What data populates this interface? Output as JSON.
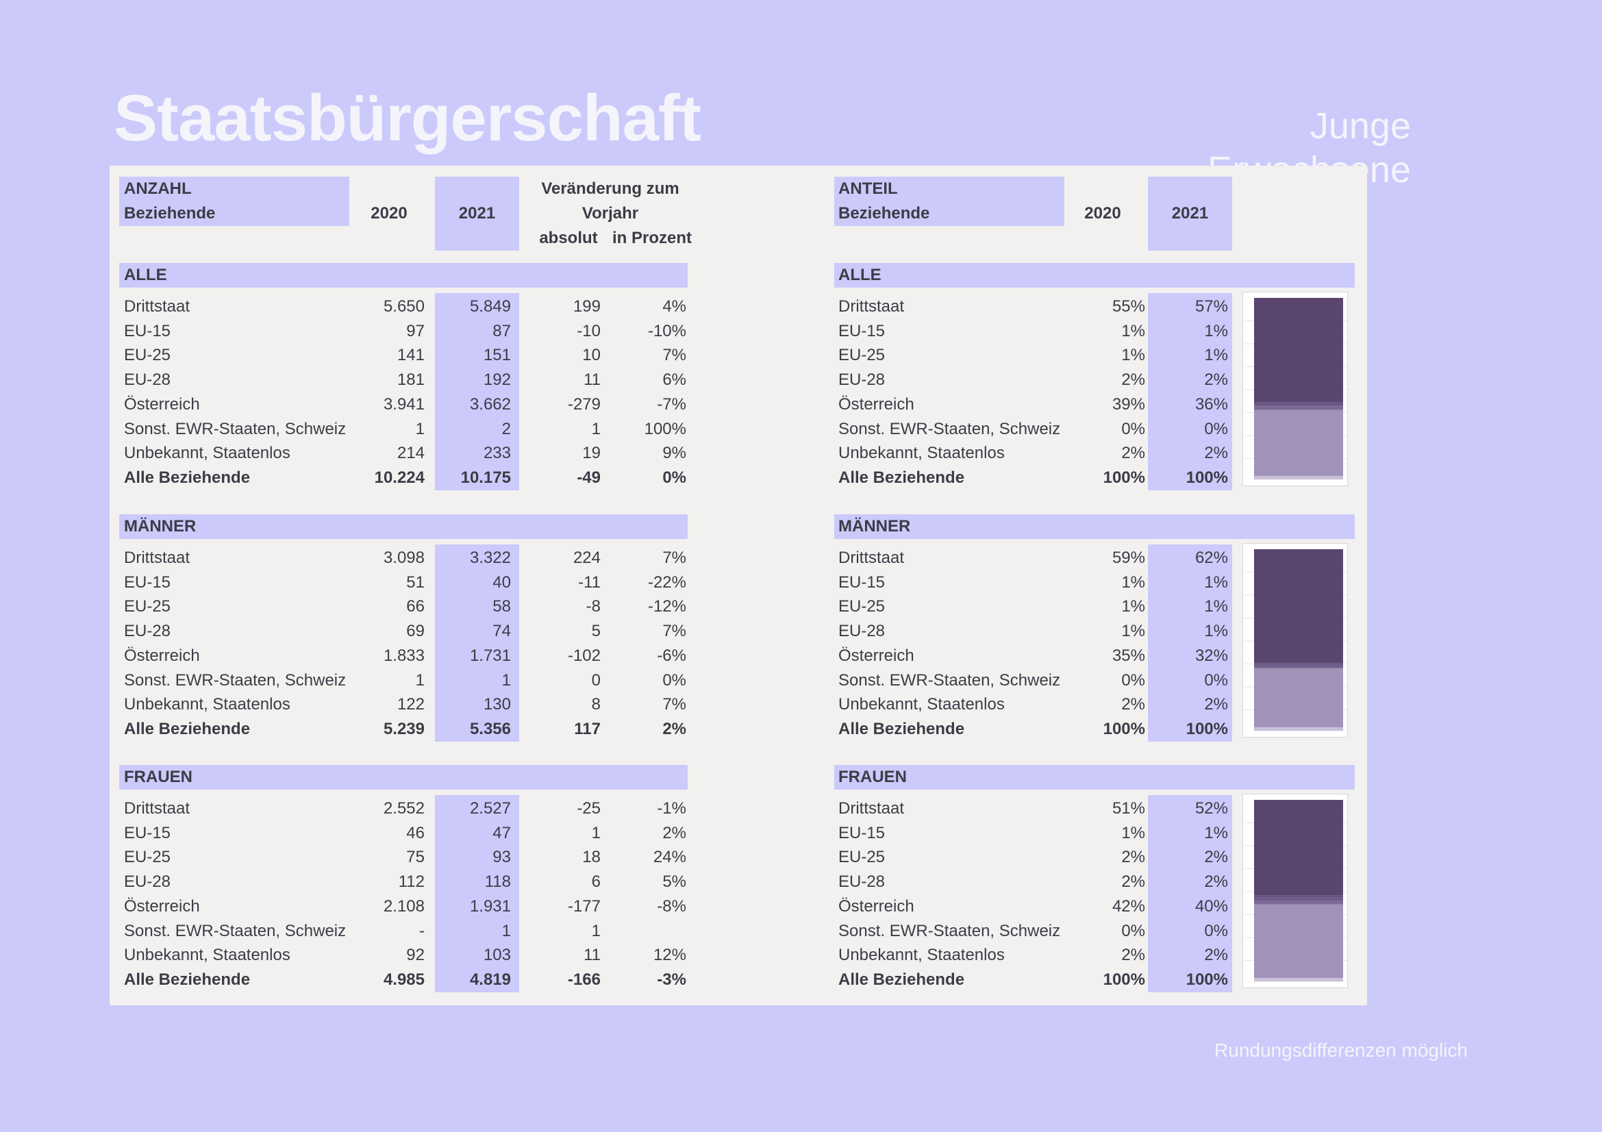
{
  "title": "Staatsbürgerschaft",
  "subtitle": "Junge Erwachsene",
  "footnote": "Rundungsdifferenzen möglich",
  "left_header": {
    "line1": "ANZAHL",
    "line2": "Beziehende",
    "year1": "2020",
    "year2": "2021",
    "change_line1": "Veränderung zum",
    "change_line2": "Vorjahr",
    "abs": "absolut",
    "pct": "in Prozent"
  },
  "right_header": {
    "line1": "ANTEIL",
    "line2": "Beziehende",
    "year1": "2020",
    "year2": "2021"
  },
  "groups": [
    {
      "name": "ALLE",
      "rows": [
        {
          "label": "Drittstaat",
          "v2020": "5.650",
          "v2021": "5.849",
          "abs": "199",
          "pct": "4%",
          "s2020": "55%",
          "s2021": "57%"
        },
        {
          "label": "EU-15",
          "v2020": "97",
          "v2021": "87",
          "abs": "-10",
          "pct": "-10%",
          "s2020": "1%",
          "s2021": "1%"
        },
        {
          "label": "EU-25",
          "v2020": "141",
          "v2021": "151",
          "abs": "10",
          "pct": "7%",
          "s2020": "1%",
          "s2021": "1%"
        },
        {
          "label": "EU-28",
          "v2020": "181",
          "v2021": "192",
          "abs": "11",
          "pct": "6%",
          "s2020": "2%",
          "s2021": "2%"
        },
        {
          "label": "Österreich",
          "v2020": "3.941",
          "v2021": "3.662",
          "abs": "-279",
          "pct": "-7%",
          "s2020": "39%",
          "s2021": "36%"
        },
        {
          "label": "Sonst. EWR-Staaten, Schweiz",
          "v2020": "1",
          "v2021": "2",
          "abs": "1",
          "pct": "100%",
          "s2020": "0%",
          "s2021": "0%"
        },
        {
          "label": "Unbekannt, Staatenlos",
          "v2020": "214",
          "v2021": "233",
          "abs": "19",
          "pct": "9%",
          "s2020": "2%",
          "s2021": "2%"
        },
        {
          "label": "Alle Beziehende",
          "v2020": "10.224",
          "v2021": "10.175",
          "abs": "-49",
          "pct": "0%",
          "s2020": "100%",
          "s2021": "100%",
          "bold": true
        }
      ]
    },
    {
      "name": "MÄNNER",
      "rows": [
        {
          "label": "Drittstaat",
          "v2020": "3.098",
          "v2021": "3.322",
          "abs": "224",
          "pct": "7%",
          "s2020": "59%",
          "s2021": "62%"
        },
        {
          "label": "EU-15",
          "v2020": "51",
          "v2021": "40",
          "abs": "-11",
          "pct": "-22%",
          "s2020": "1%",
          "s2021": "1%"
        },
        {
          "label": "EU-25",
          "v2020": "66",
          "v2021": "58",
          "abs": "-8",
          "pct": "-12%",
          "s2020": "1%",
          "s2021": "1%"
        },
        {
          "label": "EU-28",
          "v2020": "69",
          "v2021": "74",
          "abs": "5",
          "pct": "7%",
          "s2020": "1%",
          "s2021": "1%"
        },
        {
          "label": "Österreich",
          "v2020": "1.833",
          "v2021": "1.731",
          "abs": "-102",
          "pct": "-6%",
          "s2020": "35%",
          "s2021": "32%"
        },
        {
          "label": "Sonst. EWR-Staaten, Schweiz",
          "v2020": "1",
          "v2021": "1",
          "abs": "0",
          "pct": "0%",
          "s2020": "0%",
          "s2021": "0%"
        },
        {
          "label": "Unbekannt, Staatenlos",
          "v2020": "122",
          "v2021": "130",
          "abs": "8",
          "pct": "7%",
          "s2020": "2%",
          "s2021": "2%"
        },
        {
          "label": "Alle Beziehende",
          "v2020": "5.239",
          "v2021": "5.356",
          "abs": "117",
          "pct": "2%",
          "s2020": "100%",
          "s2021": "100%",
          "bold": true
        }
      ]
    },
    {
      "name": "FRAUEN",
      "rows": [
        {
          "label": "Drittstaat",
          "v2020": "2.552",
          "v2021": "2.527",
          "abs": "-25",
          "pct": "-1%",
          "s2020": "51%",
          "s2021": "52%"
        },
        {
          "label": "EU-15",
          "v2020": "46",
          "v2021": "47",
          "abs": "1",
          "pct": "2%",
          "s2020": "1%",
          "s2021": "1%"
        },
        {
          "label": "EU-25",
          "v2020": "75",
          "v2021": "93",
          "abs": "18",
          "pct": "24%",
          "s2020": "2%",
          "s2021": "2%"
        },
        {
          "label": "EU-28",
          "v2020": "112",
          "v2021": "118",
          "abs": "6",
          "pct": "5%",
          "s2020": "2%",
          "s2021": "2%"
        },
        {
          "label": "Österreich",
          "v2020": "2.108",
          "v2021": "1.931",
          "abs": "-177",
          "pct": "-8%",
          "s2020": "42%",
          "s2021": "40%"
        },
        {
          "label": "Sonst. EWR-Staaten, Schweiz",
          "v2020": "-",
          "v2021": "1",
          "abs": "1",
          "pct": "",
          "s2020": "0%",
          "s2021": "0%"
        },
        {
          "label": "Unbekannt, Staatenlos",
          "v2020": "92",
          "v2021": "103",
          "abs": "11",
          "pct": "12%",
          "s2020": "2%",
          "s2021": "2%"
        },
        {
          "label": "Alle Beziehende",
          "v2020": "4.985",
          "v2021": "4.819",
          "abs": "-166",
          "pct": "-3%",
          "s2020": "100%",
          "s2021": "100%",
          "bold": true
        }
      ]
    }
  ],
  "chart_data": {
    "type": "bar",
    "stacked": true,
    "title": "",
    "xlabel": "",
    "ylabel": "",
    "ylim": [
      0,
      1
    ],
    "categories": [
      "ALLE",
      "MÄNNER",
      "FRAUEN"
    ],
    "series": [
      {
        "name": "Drittstaat",
        "color": "#5a4570",
        "values": [
          0.57,
          0.62,
          0.52
        ]
      },
      {
        "name": "EU-15",
        "color": "#66507e",
        "values": [
          0.01,
          0.01,
          0.01
        ]
      },
      {
        "name": "EU-25",
        "color": "#6e5a88",
        "values": [
          0.01,
          0.01,
          0.02
        ]
      },
      {
        "name": "EU-28",
        "color": "#7b6a96",
        "values": [
          0.02,
          0.01,
          0.02
        ]
      },
      {
        "name": "Österreich",
        "color": "#a092b8",
        "values": [
          0.36,
          0.32,
          0.4
        ]
      },
      {
        "name": "Sonst. EWR-Staaten, Schweiz",
        "color": "#b5acc8",
        "values": [
          0.0,
          0.0,
          0.0
        ]
      },
      {
        "name": "Unbekannt, Staatenlos",
        "color": "#c8c1d6",
        "values": [
          0.02,
          0.02,
          0.02
        ]
      }
    ]
  },
  "colors": {
    "background": "#cbcafb",
    "panel": "#f2f1f0",
    "highlight": "#cbcafb",
    "text": "#3c3c46",
    "title": "#f5f4fb"
  }
}
